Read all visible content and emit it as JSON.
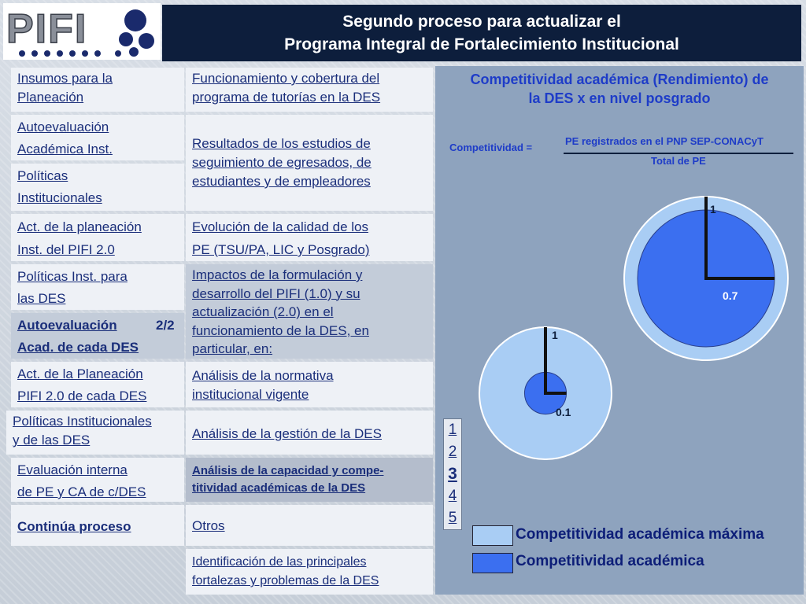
{
  "logo": {
    "text": "PIFI"
  },
  "header": {
    "line1": "Segundo proceso para actualizar el",
    "line2": "Programa Integral de Fortalecimiento Institucional"
  },
  "left_menu": [
    {
      "line1": "Insumos para la",
      "line2": "Planeación"
    },
    {
      "line1": "Autoevaluación",
      "line2": "Académica Inst."
    },
    {
      "line1": "Políticas",
      "line2": "Institucionales"
    },
    {
      "line1": "Act. de la planeación",
      "line2": "Inst. del PIFI 2.0"
    },
    {
      "line1": "Políticas Inst. para",
      "line2": "las DES"
    },
    {
      "line1": "Autoevaluación",
      "line2": "Acad. de cada DES",
      "badge": "2/2"
    },
    {
      "line1": "Act. de la Planeación",
      "line2": "PIFI 2.0 de cada DES"
    },
    {
      "line1": "Políticas Institucionales",
      "line2": "y de las DES"
    },
    {
      "line1": "Evaluación interna",
      "line2": "de PE y CA de c/DES"
    },
    {
      "line1": "Continúa  proceso",
      "line2": ""
    }
  ],
  "mid_menu": [
    {
      "line1": "Funcionamiento y cobertura del",
      "line2": "programa de tutorías en la DES"
    },
    {
      "line1": "Resultados de los estudios de",
      "line2": "seguimiento de egresados, de",
      "line3": "estudiantes y de empleadores"
    },
    {
      "line1": "Evolución de la calidad de los",
      "line2": "PE (TSU/PA, LIC y Posgrado)"
    },
    {
      "line1": "Impactos de la formulación y",
      "line2": "desarrollo del PIFI (1.0) y su",
      "line3": "actualización (2.0) en el",
      "line4": "funcionamiento de la DES, en",
      "line5": "particular, en:"
    },
    {
      "line1": "Análisis de la normativa",
      "line2": "institucional vigente"
    },
    {
      "line1": "Análisis de la gestión de la DES"
    },
    {
      "line1": "Análisis de la capacidad y compe-",
      "line2": "titividad académicas de la DES"
    },
    {
      "line1": "Otros"
    },
    {
      "line1": "Identificación de las principales",
      "line2": "fortalezas y problemas de la DES"
    }
  ],
  "panel": {
    "title1": "Competitividad académica (Rendimiento) de",
    "title2": "la DES x en nivel posgrado",
    "formula_label": "Competitividad =",
    "numerator": "PE registrados en el PNP SEP-CONACyT",
    "denominator": "Total de PE"
  },
  "page_numbers": [
    "1",
    "2",
    "3",
    "4",
    "5"
  ],
  "legend": [
    {
      "label": "Competitividad académica máxima",
      "color": "#a9cdf4"
    },
    {
      "label": "Competitividad académica",
      "color": "#3b6ff0"
    }
  ],
  "chart_data": [
    {
      "type": "pie",
      "max_label": "1",
      "value_label": "0.7",
      "max": 1,
      "value": 0.7,
      "colors": {
        "max": "#a9cdf4",
        "value": "#3b6ff0"
      }
    },
    {
      "type": "pie",
      "max_label": "1",
      "value_label": "0.1",
      "max": 1,
      "value": 0.1,
      "colors": {
        "max": "#a9cdf4",
        "value": "#3b6ff0"
      }
    }
  ]
}
